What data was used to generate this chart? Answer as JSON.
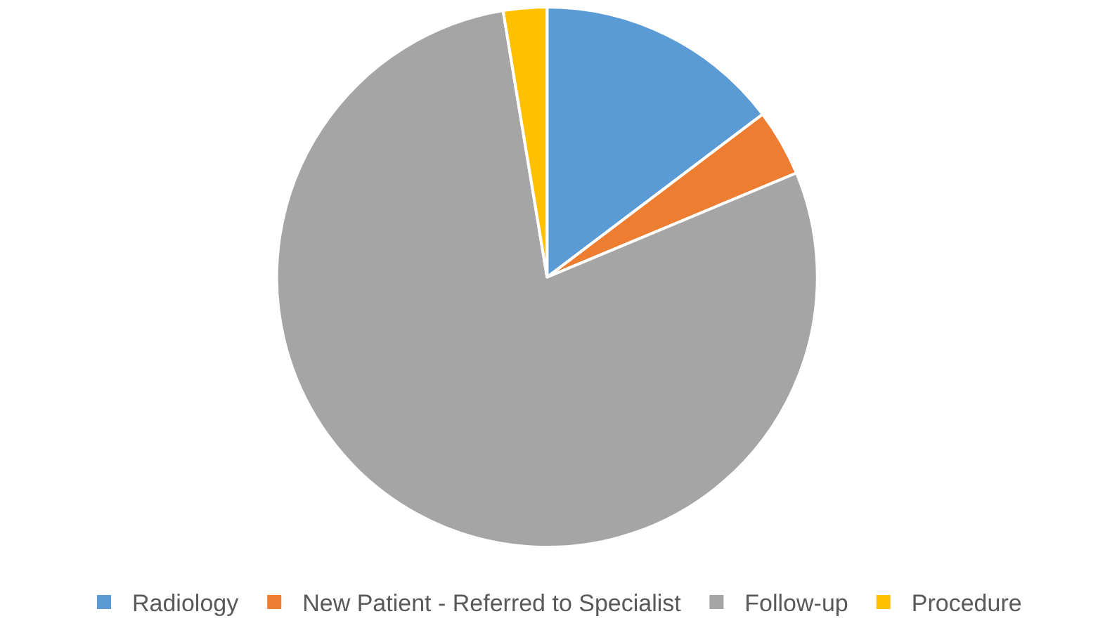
{
  "chart_data": {
    "type": "pie",
    "categories": [
      "Radiology",
      "New Patient - Referred to Specialist",
      "Follow-up",
      "Procedure"
    ],
    "values": [
      14.7,
      4.0,
      78.7,
      2.6
    ],
    "colors": [
      "#5b9bd5",
      "#ed7d31",
      "#a5a5a5",
      "#ffc000"
    ],
    "legend": "bottom"
  }
}
